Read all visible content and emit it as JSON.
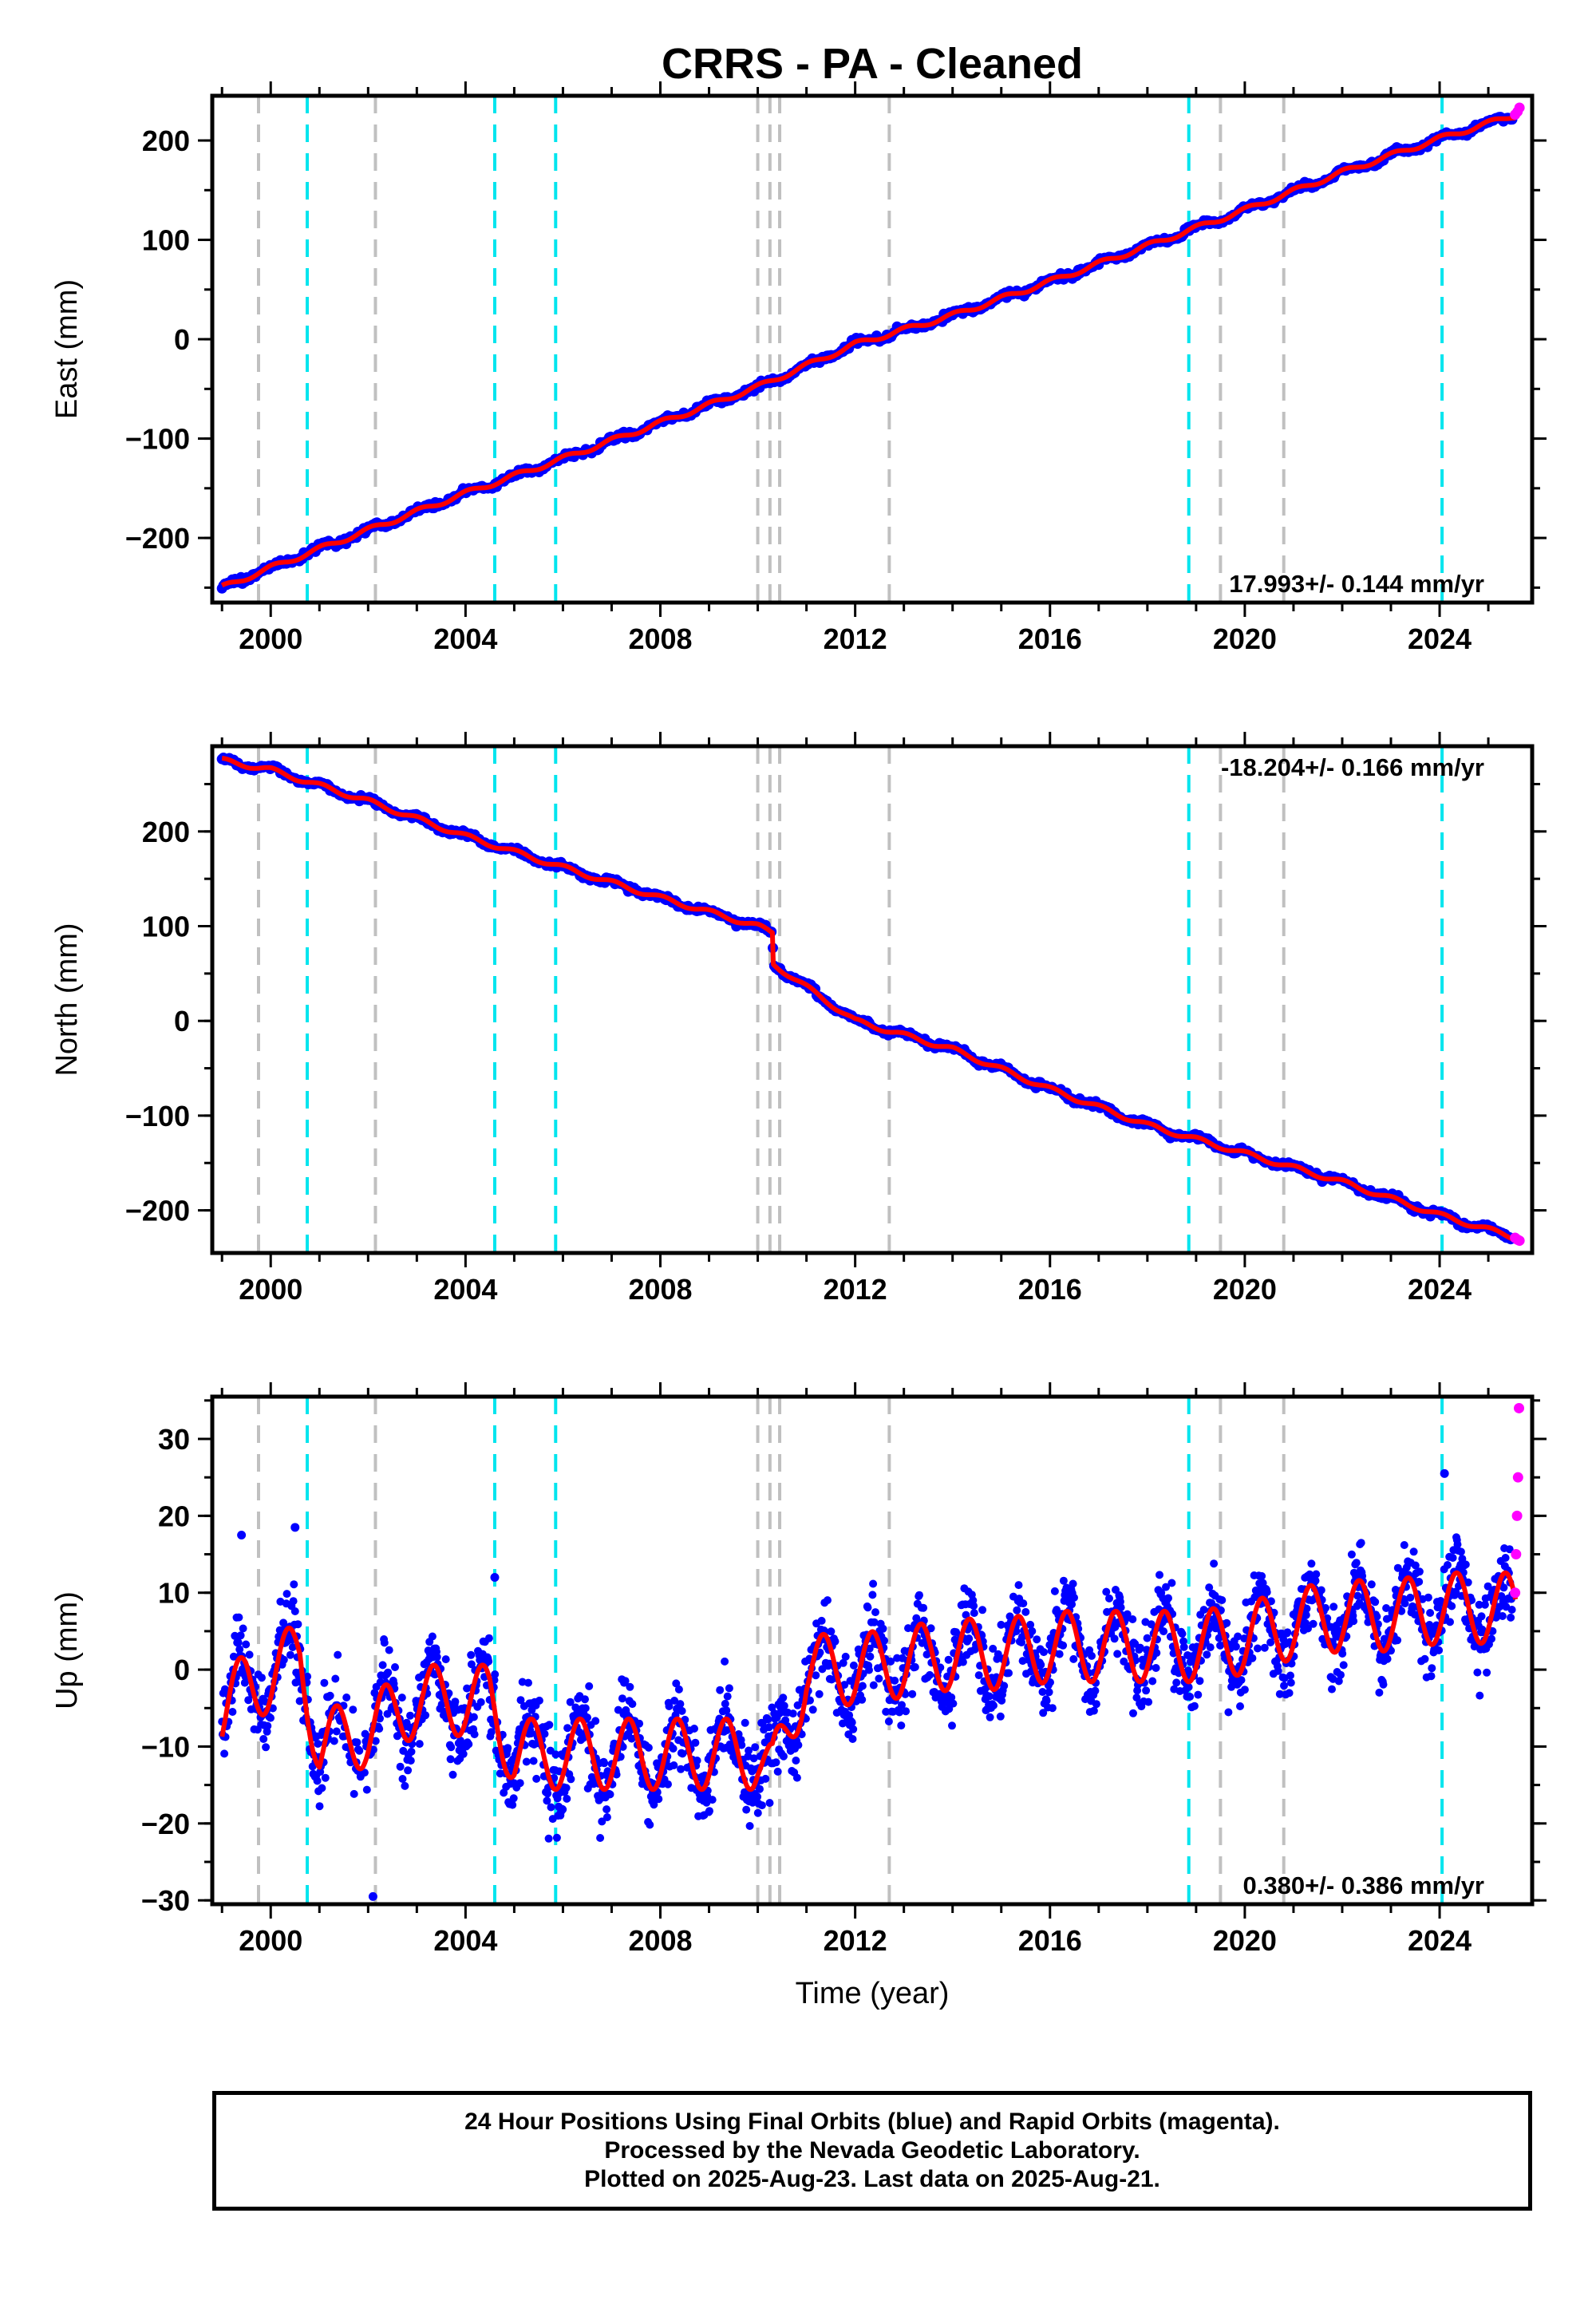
{
  "title": "CRRS  - PA - Cleaned",
  "xlabel": "Time (year)",
  "footer": {
    "line1": "24 Hour Positions Using Final Orbits (blue) and Rapid Orbits (magenta).",
    "line2": "Processed by the Nevada Geodetic Laboratory.",
    "line3": "Plotted on 2025-Aug-23. Last data on 2025-Aug-21."
  },
  "colors": {
    "final_orbits": "#0000ff",
    "rapid_orbits": "#ff00ff",
    "model_fit": "#ff0000",
    "equipment_change_line": "#00e5ee",
    "event_line": "#c0c0c0"
  },
  "chart_data": [
    {
      "type": "scatter",
      "ylabel": "East (mm)",
      "xlim": [
        1998.8,
        2025.9
      ],
      "ylim": [
        -265,
        245
      ],
      "xticks": [
        "2000",
        "2004",
        "2008",
        "2012",
        "2016",
        "2020",
        "2024"
      ],
      "yticks": [
        "−200",
        "−100",
        "0",
        "100",
        "200"
      ],
      "rate_label": "17.993+/- 0.144 mm/yr",
      "rate_position": "bottom-right",
      "rate": 17.993,
      "rate_uncertainty": 0.144,
      "series": [
        {
          "name": "Final Orbits",
          "x": [
            1999.0,
            2000.0,
            2002.0,
            2004.0,
            2006.0,
            2008.0,
            2010.0,
            2012.0,
            2014.0,
            2016.0,
            2018.0,
            2020.0,
            2022.0,
            2024.0,
            2025.5
          ],
          "y": [
            -250,
            -230,
            -192,
            -155,
            -120,
            -84,
            -48,
            -5,
            24,
            58,
            94,
            130,
            168,
            202,
            225
          ]
        },
        {
          "name": "Rapid Orbits",
          "x": [
            2025.55,
            2025.6,
            2025.64
          ],
          "y": [
            226,
            229,
            233
          ]
        }
      ]
    },
    {
      "type": "scatter",
      "ylabel": "North (mm)",
      "xlim": [
        1998.8,
        2025.9
      ],
      "ylim": [
        -245,
        290
      ],
      "xticks": [
        "2000",
        "2004",
        "2008",
        "2012",
        "2016",
        "2020",
        "2024"
      ],
      "yticks": [
        "−200",
        "−100",
        "0",
        "100",
        "200"
      ],
      "rate_label": "-18.204+/- 0.166 mm/yr",
      "rate_position": "top-right",
      "rate": -18.204,
      "rate_uncertainty": 0.166,
      "series": [
        {
          "name": "Final Orbits",
          "x": [
            1999.0,
            2000.0,
            2002.0,
            2004.0,
            2006.0,
            2008.0,
            2010.0,
            2010.3,
            2010.32,
            2012.0,
            2014.0,
            2016.0,
            2018.0,
            2020.0,
            2022.0,
            2024.0,
            2025.5
          ],
          "y": [
            275,
            265,
            232,
            195,
            162,
            130,
            100,
            93,
            60,
            0,
            -30,
            -72,
            -110,
            -140,
            -170,
            -205,
            -228
          ]
        },
        {
          "name": "Rapid Orbits",
          "x": [
            2025.55,
            2025.6,
            2025.64
          ],
          "y": [
            -229,
            -231,
            -232
          ]
        }
      ]
    },
    {
      "type": "scatter",
      "ylabel": "Up (mm)",
      "xlim": [
        1998.8,
        2025.9
      ],
      "ylim": [
        -30.5,
        35.5
      ],
      "xticks": [
        "2000",
        "2004",
        "2008",
        "2012",
        "2016",
        "2020",
        "2024"
      ],
      "yticks": [
        "−30",
        "−20",
        "−10",
        "0",
        "10",
        "20",
        "30"
      ],
      "rate_label": "0.380+/- 0.386 mm/yr",
      "rate_position": "bottom-right",
      "rate": 0.38,
      "rate_uncertainty": 0.386,
      "series": [
        {
          "name": "Final Orbits",
          "x": [
            1999.0,
            1999.5,
            2000.0,
            2000.6,
            2001.0,
            2002.0,
            2003.0,
            2004.0,
            2004.5,
            2005.0,
            2006.0,
            2007.0,
            2008.0,
            2009.0,
            2010.0,
            2010.3,
            2011.0,
            2012.0,
            2013.0,
            2014.0,
            2015.0,
            2016.0,
            2017.0,
            2018.0,
            2019.0,
            2020.0,
            2021.0,
            2022.0,
            2023.0,
            2024.0,
            2025.0,
            2025.5
          ],
          "y": [
            -6,
            -2,
            -1,
            2,
            -10,
            -8,
            -4,
            -4,
            -4,
            -11,
            -11,
            -11,
            -11,
            -11,
            -11,
            -14,
            0,
            0,
            1,
            2,
            2,
            3,
            3,
            3,
            3,
            4,
            6,
            7,
            7,
            8,
            8,
            8
          ]
        },
        {
          "name": "Rapid Orbits",
          "x": [
            2025.55,
            2025.57,
            2025.59,
            2025.61,
            2025.63
          ],
          "y": [
            10,
            15,
            20,
            25,
            34
          ]
        }
      ],
      "outliers": {
        "x": [
          2002.1,
          2024.1,
          1999.4,
          2000.5,
          2004.6
        ],
        "y": [
          -29.5,
          25.5,
          17.5,
          18.5,
          12
        ]
      }
    }
  ],
  "offsets": {
    "equipment_change": [
      2000.75,
      2004.6,
      2005.85,
      2018.85,
      2024.05
    ],
    "other_event": [
      1999.75,
      2002.15,
      2010.0,
      2010.25,
      2010.45,
      2012.7,
      2019.5,
      2020.8
    ]
  }
}
